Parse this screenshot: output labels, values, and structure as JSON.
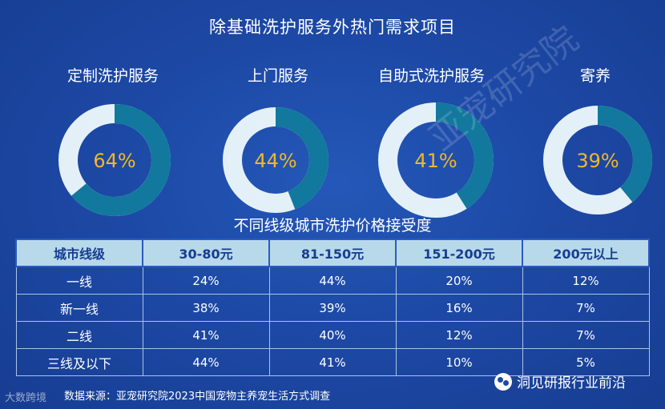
{
  "title": "除基础洗护服务外热门需求项目",
  "chart_data": [
    {
      "type": "pie",
      "title": "除基础洗护服务外热门需求项目",
      "slices": [
        {
          "label": "定制洗护服务",
          "value": 64,
          "display": "64%"
        },
        {
          "label": "上门服务",
          "value": 44,
          "display": "44%"
        },
        {
          "label": "自助式洗护服务",
          "value": 41,
          "display": "41%"
        },
        {
          "label": "寄养",
          "value": 39,
          "display": "39%"
        }
      ]
    },
    {
      "type": "table",
      "title": "不同线级城市洗护价格接受度",
      "columns": [
        "城市线级",
        "30-80元",
        "81-150元",
        "151-200元",
        "200元以上"
      ],
      "rows": [
        [
          "一线",
          "24%",
          "44%",
          "20%",
          "12%"
        ],
        [
          "新一线",
          "38%",
          "39%",
          "16%",
          "7%"
        ],
        [
          "二线",
          "41%",
          "40%",
          "12%",
          "7%"
        ],
        [
          "三线及以下",
          "44%",
          "41%",
          "10%",
          "5%"
        ]
      ]
    }
  ],
  "source": "数据来源：亚宠研究院2023中国宠物主养宠生活方式调查",
  "watermark_diag": "亚宠研究院",
  "watermark_corner": "大数跨境",
  "brand": "洞见研报行业前沿",
  "colors": {
    "background": "#1d49a6",
    "donut_fill": "#12789e",
    "donut_rest": "#e4f0f8",
    "center_text": "#f0b72a",
    "table_header": "#b8d9ea"
  }
}
